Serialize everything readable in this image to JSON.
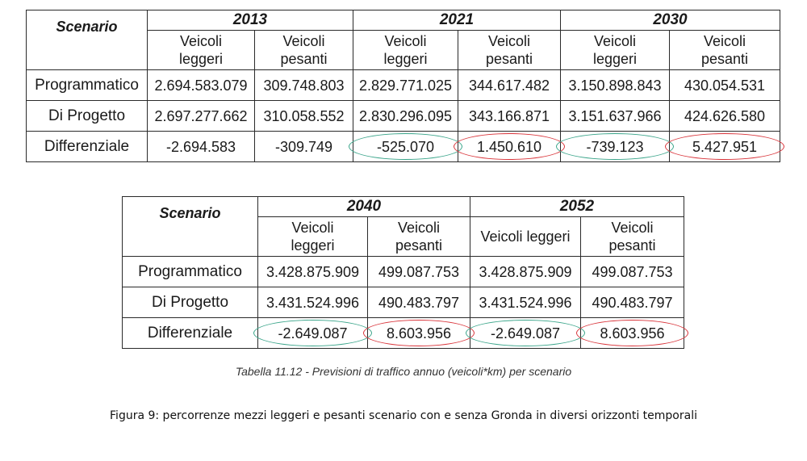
{
  "table1": {
    "scenario_label": "Scenario",
    "years": [
      "2013",
      "2021",
      "2030"
    ],
    "subheaders": [
      [
        "Veicoli",
        "leggeri"
      ],
      [
        "Veicoli",
        "pesanti"
      ],
      [
        "Veicoli",
        "leggeri"
      ],
      [
        "Veicoli",
        "pesanti"
      ],
      [
        "Veicoli",
        "leggeri"
      ],
      [
        "Veicoli",
        "pesanti"
      ]
    ],
    "rows": [
      {
        "label": "Programmatico",
        "values": [
          "2.694.583.079",
          "309.748.803",
          "2.829.771.025",
          "344.617.482",
          "3.150.898.843",
          "430.054.531"
        ]
      },
      {
        "label": "Di Progetto",
        "values": [
          "2.697.277.662",
          "310.058.552",
          "2.830.296.095",
          "343.166.871",
          "3.151.637.966",
          "424.626.580"
        ]
      },
      {
        "label": "Differenziale",
        "values": [
          "-2.694.583",
          "-309.749",
          "-525.070",
          "1.450.610",
          "-739.123",
          "5.427.951"
        ]
      }
    ]
  },
  "table2": {
    "scenario_label": "Scenario",
    "years": [
      "2040",
      "2052"
    ],
    "subheaders": [
      [
        "Veicoli",
        "leggeri"
      ],
      [
        "Veicoli",
        "pesanti"
      ],
      [
        "Veicoli leggeri",
        ""
      ],
      [
        "Veicoli",
        "pesanti"
      ]
    ],
    "rows": [
      {
        "label": "Programmatico",
        "values": [
          "3.428.875.909",
          "499.087.753",
          "3.428.875.909",
          "499.087.753"
        ]
      },
      {
        "label": "Di Progetto",
        "values": [
          "3.431.524.996",
          "490.483.797",
          "3.431.524.996",
          "490.483.797"
        ]
      },
      {
        "label": "Differenziale",
        "values": [
          "-2.649.087",
          "8.603.956",
          "-2.649.087",
          "8.603.956"
        ]
      }
    ]
  },
  "highlight_colors": {
    "light_vehicles": "#3aa58a",
    "heavy_vehicles": "#d9343a"
  },
  "table_caption": "Tabella 11.12 - Previsioni di traffico annuo (veicoli*km) per scenario",
  "figure_caption": "Figura 9: percorrenze mezzi leggeri e pesanti scenario con e senza Gronda in diversi orizzonti temporali"
}
